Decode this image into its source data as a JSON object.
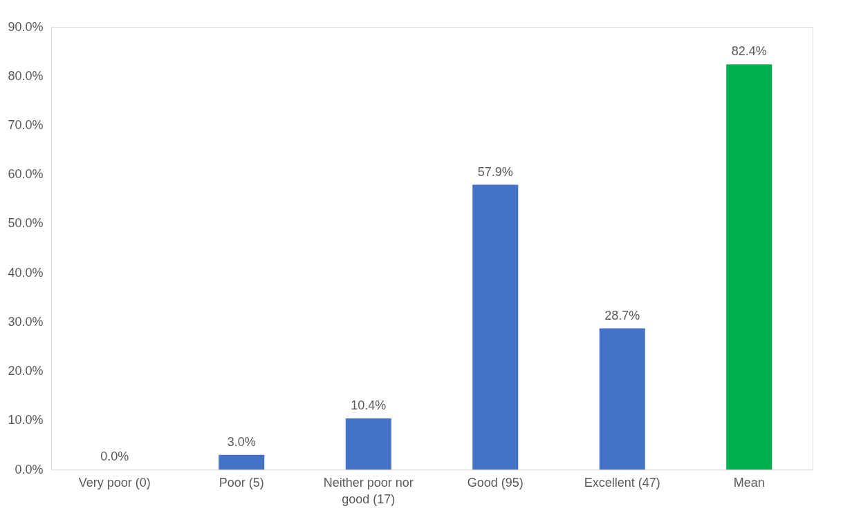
{
  "chart_data": {
    "type": "bar",
    "categories": [
      "Very poor (0)",
      "Poor (5)",
      "Neither poor nor good (17)",
      "Good (95)",
      "Excellent (47)",
      "Mean"
    ],
    "values": [
      0.0,
      3.0,
      10.4,
      57.9,
      28.7,
      82.4
    ],
    "colors": [
      "#4472c4",
      "#4472c4",
      "#4472c4",
      "#4472c4",
      "#4472c4",
      "#00b050"
    ],
    "value_labels": [
      "0.0%",
      "3.0%",
      "10.4%",
      "57.9%",
      "28.7%",
      "82.4%"
    ],
    "ylim": [
      0,
      90
    ],
    "yticks": [
      {
        "value": 0,
        "label": "0.0%"
      },
      {
        "value": 10,
        "label": "10.0%"
      },
      {
        "value": 20,
        "label": "20.0%"
      },
      {
        "value": 30,
        "label": "30.0%"
      },
      {
        "value": 40,
        "label": "40.0%"
      },
      {
        "value": 50,
        "label": "50.0%"
      },
      {
        "value": 60,
        "label": "60.0%"
      },
      {
        "value": 70,
        "label": "70.0%"
      },
      {
        "value": 80,
        "label": "80.0%"
      },
      {
        "value": 90,
        "label": "90.0%"
      }
    ],
    "grid": false
  }
}
